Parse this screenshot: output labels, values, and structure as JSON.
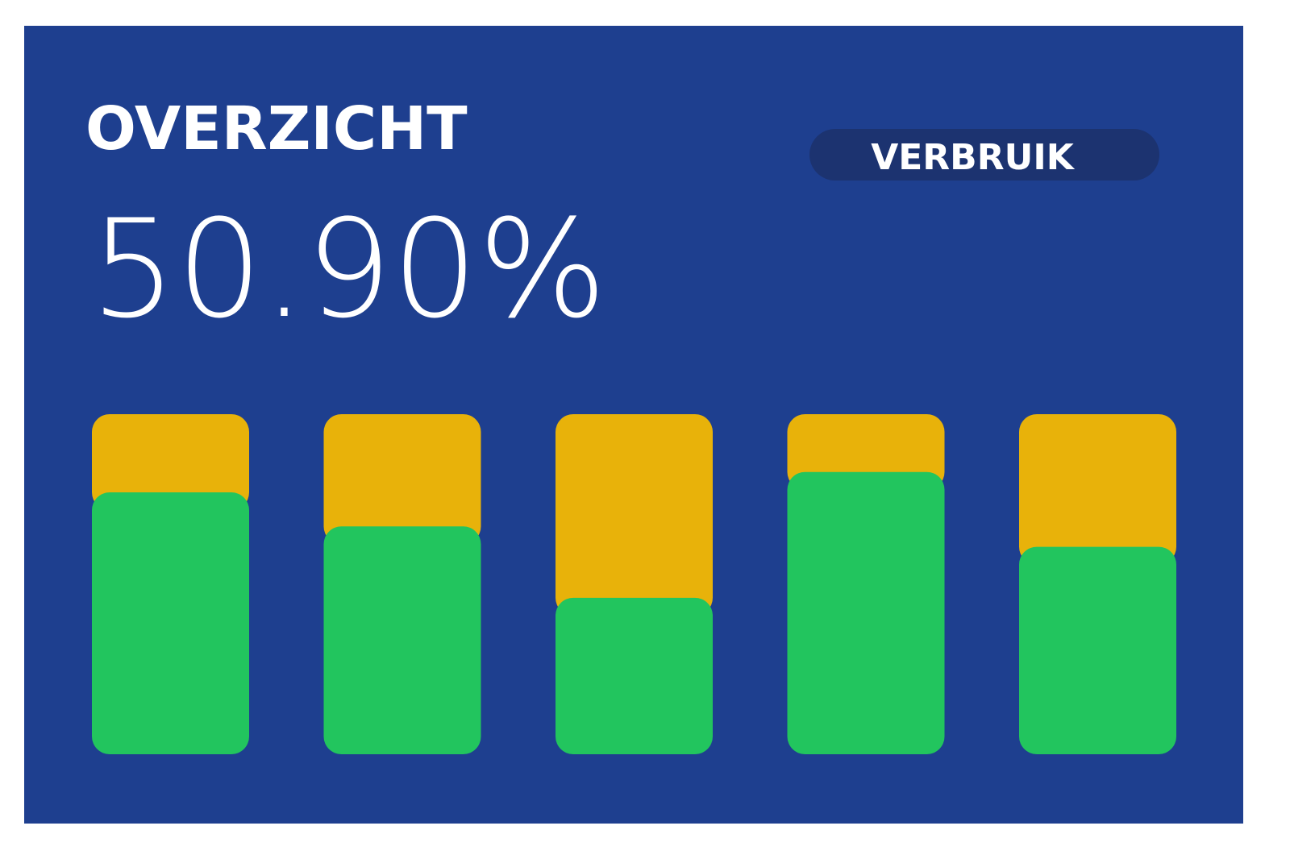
{
  "chart_data": {
    "type": "stacked-bar",
    "title": "OVERZICHT",
    "subtitle": "50.90%",
    "button": "VERBRUIK",
    "ylim": [
      0,
      100
    ],
    "series": [
      {
        "color": "#22c55e",
        "values": [
          77,
          67,
          46,
          83,
          61
        ]
      },
      {
        "color": "#e8b20a",
        "values": [
          23,
          33,
          54,
          17,
          39
        ]
      }
    ]
  }
}
